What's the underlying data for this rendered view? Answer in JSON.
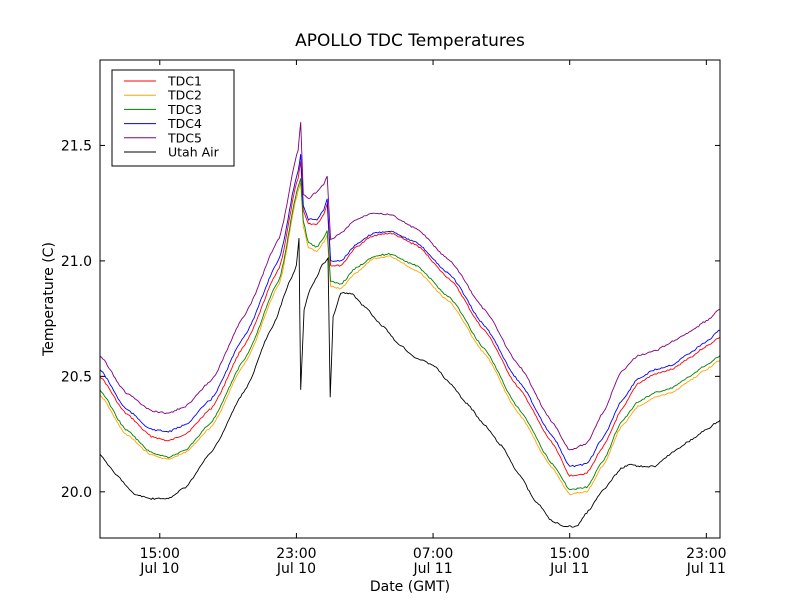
{
  "chart_data": {
    "type": "line",
    "title": "APOLLO TDC Temperatures",
    "xlabel": "Date (GMT)",
    "ylabel": "Temperature (C)",
    "x_units": "hours since Jul 10 00:00 GMT",
    "xlim": [
      11.5,
      47.8
    ],
    "ylim": [
      19.8,
      21.87
    ],
    "grid": false,
    "legend_position": "top-left",
    "yticks": [
      {
        "value": 20.0,
        "label": "20.0"
      },
      {
        "value": 20.5,
        "label": "20.5"
      },
      {
        "value": 21.0,
        "label": "21.0"
      },
      {
        "value": 21.5,
        "label": "21.5"
      }
    ],
    "xticks": [
      {
        "value": 15,
        "label1": "15:00",
        "label2": "Jul 10"
      },
      {
        "value": 23,
        "label1": "23:00",
        "label2": "Jul 10"
      },
      {
        "value": 31,
        "label1": "07:00",
        "label2": "Jul 11"
      },
      {
        "value": 39,
        "label1": "15:00",
        "label2": "Jul 11"
      },
      {
        "value": 47,
        "label1": "23:00",
        "label2": "Jul 11"
      }
    ],
    "series": [
      {
        "name": "TDC1",
        "color": "#ff0000",
        "x": [
          11.5,
          13.0,
          14.5,
          15.5,
          16.5,
          18.0,
          20.0,
          22.0,
          23.1,
          23.25,
          23.4,
          23.7,
          24.2,
          24.6,
          24.8,
          25.0,
          25.6,
          26.5,
          27.5,
          28.5,
          30.0,
          32.0,
          34.0,
          36.0,
          38.0,
          39.0,
          40.0,
          41.0,
          42.0,
          43.0,
          44.0,
          45.0,
          46.0,
          47.0,
          47.8
        ],
        "y": [
          20.5,
          20.34,
          20.24,
          20.22,
          20.25,
          20.36,
          20.64,
          20.97,
          21.36,
          21.43,
          21.22,
          21.16,
          21.16,
          21.2,
          21.25,
          20.98,
          20.98,
          21.06,
          21.11,
          21.12,
          21.07,
          20.92,
          20.7,
          20.45,
          20.21,
          20.07,
          20.08,
          20.2,
          20.35,
          20.47,
          20.51,
          20.53,
          20.58,
          20.63,
          20.67
        ]
      },
      {
        "name": "TDC2",
        "color": "#ffa500",
        "x": [
          11.5,
          13.0,
          14.5,
          15.5,
          16.5,
          18.0,
          20.0,
          22.0,
          23.1,
          23.25,
          23.4,
          23.7,
          24.2,
          24.6,
          24.8,
          25.0,
          25.6,
          26.5,
          27.5,
          28.5,
          30.0,
          32.0,
          34.0,
          36.0,
          38.0,
          39.0,
          40.0,
          41.0,
          42.0,
          43.0,
          44.0,
          45.0,
          46.0,
          47.0,
          47.8
        ],
        "y": [
          20.42,
          20.25,
          20.16,
          20.14,
          20.17,
          20.28,
          20.56,
          20.9,
          21.3,
          21.34,
          21.15,
          21.06,
          21.04,
          21.08,
          21.11,
          20.89,
          20.88,
          20.95,
          21.01,
          21.02,
          20.96,
          20.82,
          20.6,
          20.34,
          20.1,
          19.99,
          20.0,
          20.12,
          20.28,
          20.37,
          20.41,
          20.43,
          20.48,
          20.53,
          20.57
        ]
      },
      {
        "name": "TDC3",
        "color": "#008000",
        "x": [
          11.5,
          13.0,
          14.5,
          15.5,
          16.5,
          18.0,
          20.0,
          22.0,
          23.1,
          23.25,
          23.4,
          23.7,
          24.2,
          24.6,
          24.8,
          25.0,
          25.6,
          26.5,
          27.5,
          28.5,
          30.0,
          32.0,
          34.0,
          36.0,
          38.0,
          39.0,
          40.0,
          41.0,
          42.0,
          43.0,
          44.0,
          45.0,
          46.0,
          47.0,
          47.8
        ],
        "y": [
          20.44,
          20.27,
          20.17,
          20.15,
          20.18,
          20.3,
          20.58,
          20.92,
          21.32,
          21.36,
          21.17,
          21.08,
          21.06,
          21.1,
          21.13,
          20.91,
          20.9,
          20.97,
          21.02,
          21.03,
          20.98,
          20.84,
          20.62,
          20.36,
          20.12,
          20.01,
          20.02,
          20.14,
          20.3,
          20.39,
          20.43,
          20.45,
          20.5,
          20.55,
          20.59
        ]
      },
      {
        "name": "TDC4",
        "color": "#0000ff",
        "x": [
          11.5,
          13.0,
          14.5,
          15.5,
          16.5,
          18.0,
          20.0,
          22.0,
          23.1,
          23.25,
          23.4,
          23.7,
          24.2,
          24.6,
          24.8,
          25.0,
          25.6,
          26.5,
          27.5,
          28.5,
          30.0,
          32.0,
          34.0,
          36.0,
          38.0,
          39.0,
          40.0,
          41.0,
          42.0,
          43.0,
          44.0,
          45.0,
          46.0,
          47.0,
          47.8
        ],
        "y": [
          20.53,
          20.36,
          20.27,
          20.26,
          20.29,
          20.4,
          20.68,
          21.01,
          21.39,
          21.46,
          21.24,
          21.18,
          21.18,
          21.22,
          21.27,
          21.0,
          21.0,
          21.07,
          21.12,
          21.13,
          21.08,
          20.94,
          20.72,
          20.48,
          20.24,
          20.11,
          20.12,
          20.24,
          20.39,
          20.49,
          20.53,
          20.55,
          20.6,
          20.65,
          20.7
        ]
      },
      {
        "name": "TDC5",
        "color": "#800080",
        "x": [
          11.5,
          13.0,
          14.5,
          15.5,
          16.5,
          18.0,
          20.0,
          22.0,
          23.1,
          23.25,
          23.4,
          23.7,
          24.2,
          24.6,
          24.8,
          25.0,
          25.6,
          26.5,
          27.5,
          28.5,
          30.0,
          32.0,
          34.0,
          36.0,
          38.0,
          39.0,
          40.0,
          41.0,
          42.0,
          43.0,
          44.0,
          45.0,
          46.0,
          47.0,
          47.8
        ],
        "y": [
          20.59,
          20.43,
          20.35,
          20.34,
          20.37,
          20.48,
          20.77,
          21.1,
          21.48,
          21.6,
          21.29,
          21.27,
          21.3,
          21.33,
          21.37,
          21.09,
          21.12,
          21.18,
          21.21,
          21.2,
          21.14,
          21.0,
          20.79,
          20.55,
          20.3,
          20.18,
          20.21,
          20.35,
          20.52,
          20.59,
          20.61,
          20.65,
          20.69,
          20.74,
          20.79
        ]
      },
      {
        "name": "Utah Air",
        "color": "#000000",
        "x": [
          11.5,
          12.5,
          13.5,
          14.5,
          15.5,
          16.5,
          18.0,
          20.0,
          21.5,
          22.8,
          23.0,
          23.15,
          23.25,
          23.45,
          23.8,
          24.2,
          24.5,
          24.85,
          24.98,
          25.15,
          25.6,
          26.2,
          27.0,
          28.0,
          29.0,
          30.0,
          31.0,
          32.0,
          33.0,
          34.0,
          35.0,
          36.0,
          37.0,
          38.0,
          38.8,
          39.4,
          40.0,
          41.0,
          42.0,
          42.5,
          43.0,
          44.0,
          45.0,
          46.0,
          47.0,
          47.8
        ],
        "y": [
          20.16,
          20.07,
          19.99,
          19.97,
          19.97,
          20.02,
          20.17,
          20.44,
          20.7,
          20.94,
          20.98,
          21.1,
          20.44,
          20.79,
          20.88,
          20.93,
          20.98,
          21.01,
          20.41,
          20.76,
          20.86,
          20.86,
          20.8,
          20.72,
          20.64,
          20.58,
          20.55,
          20.47,
          20.38,
          20.29,
          20.2,
          20.08,
          19.96,
          19.87,
          19.85,
          19.85,
          19.91,
          20.01,
          20.1,
          20.12,
          20.11,
          20.11,
          20.17,
          20.22,
          20.27,
          20.31
        ]
      }
    ]
  }
}
